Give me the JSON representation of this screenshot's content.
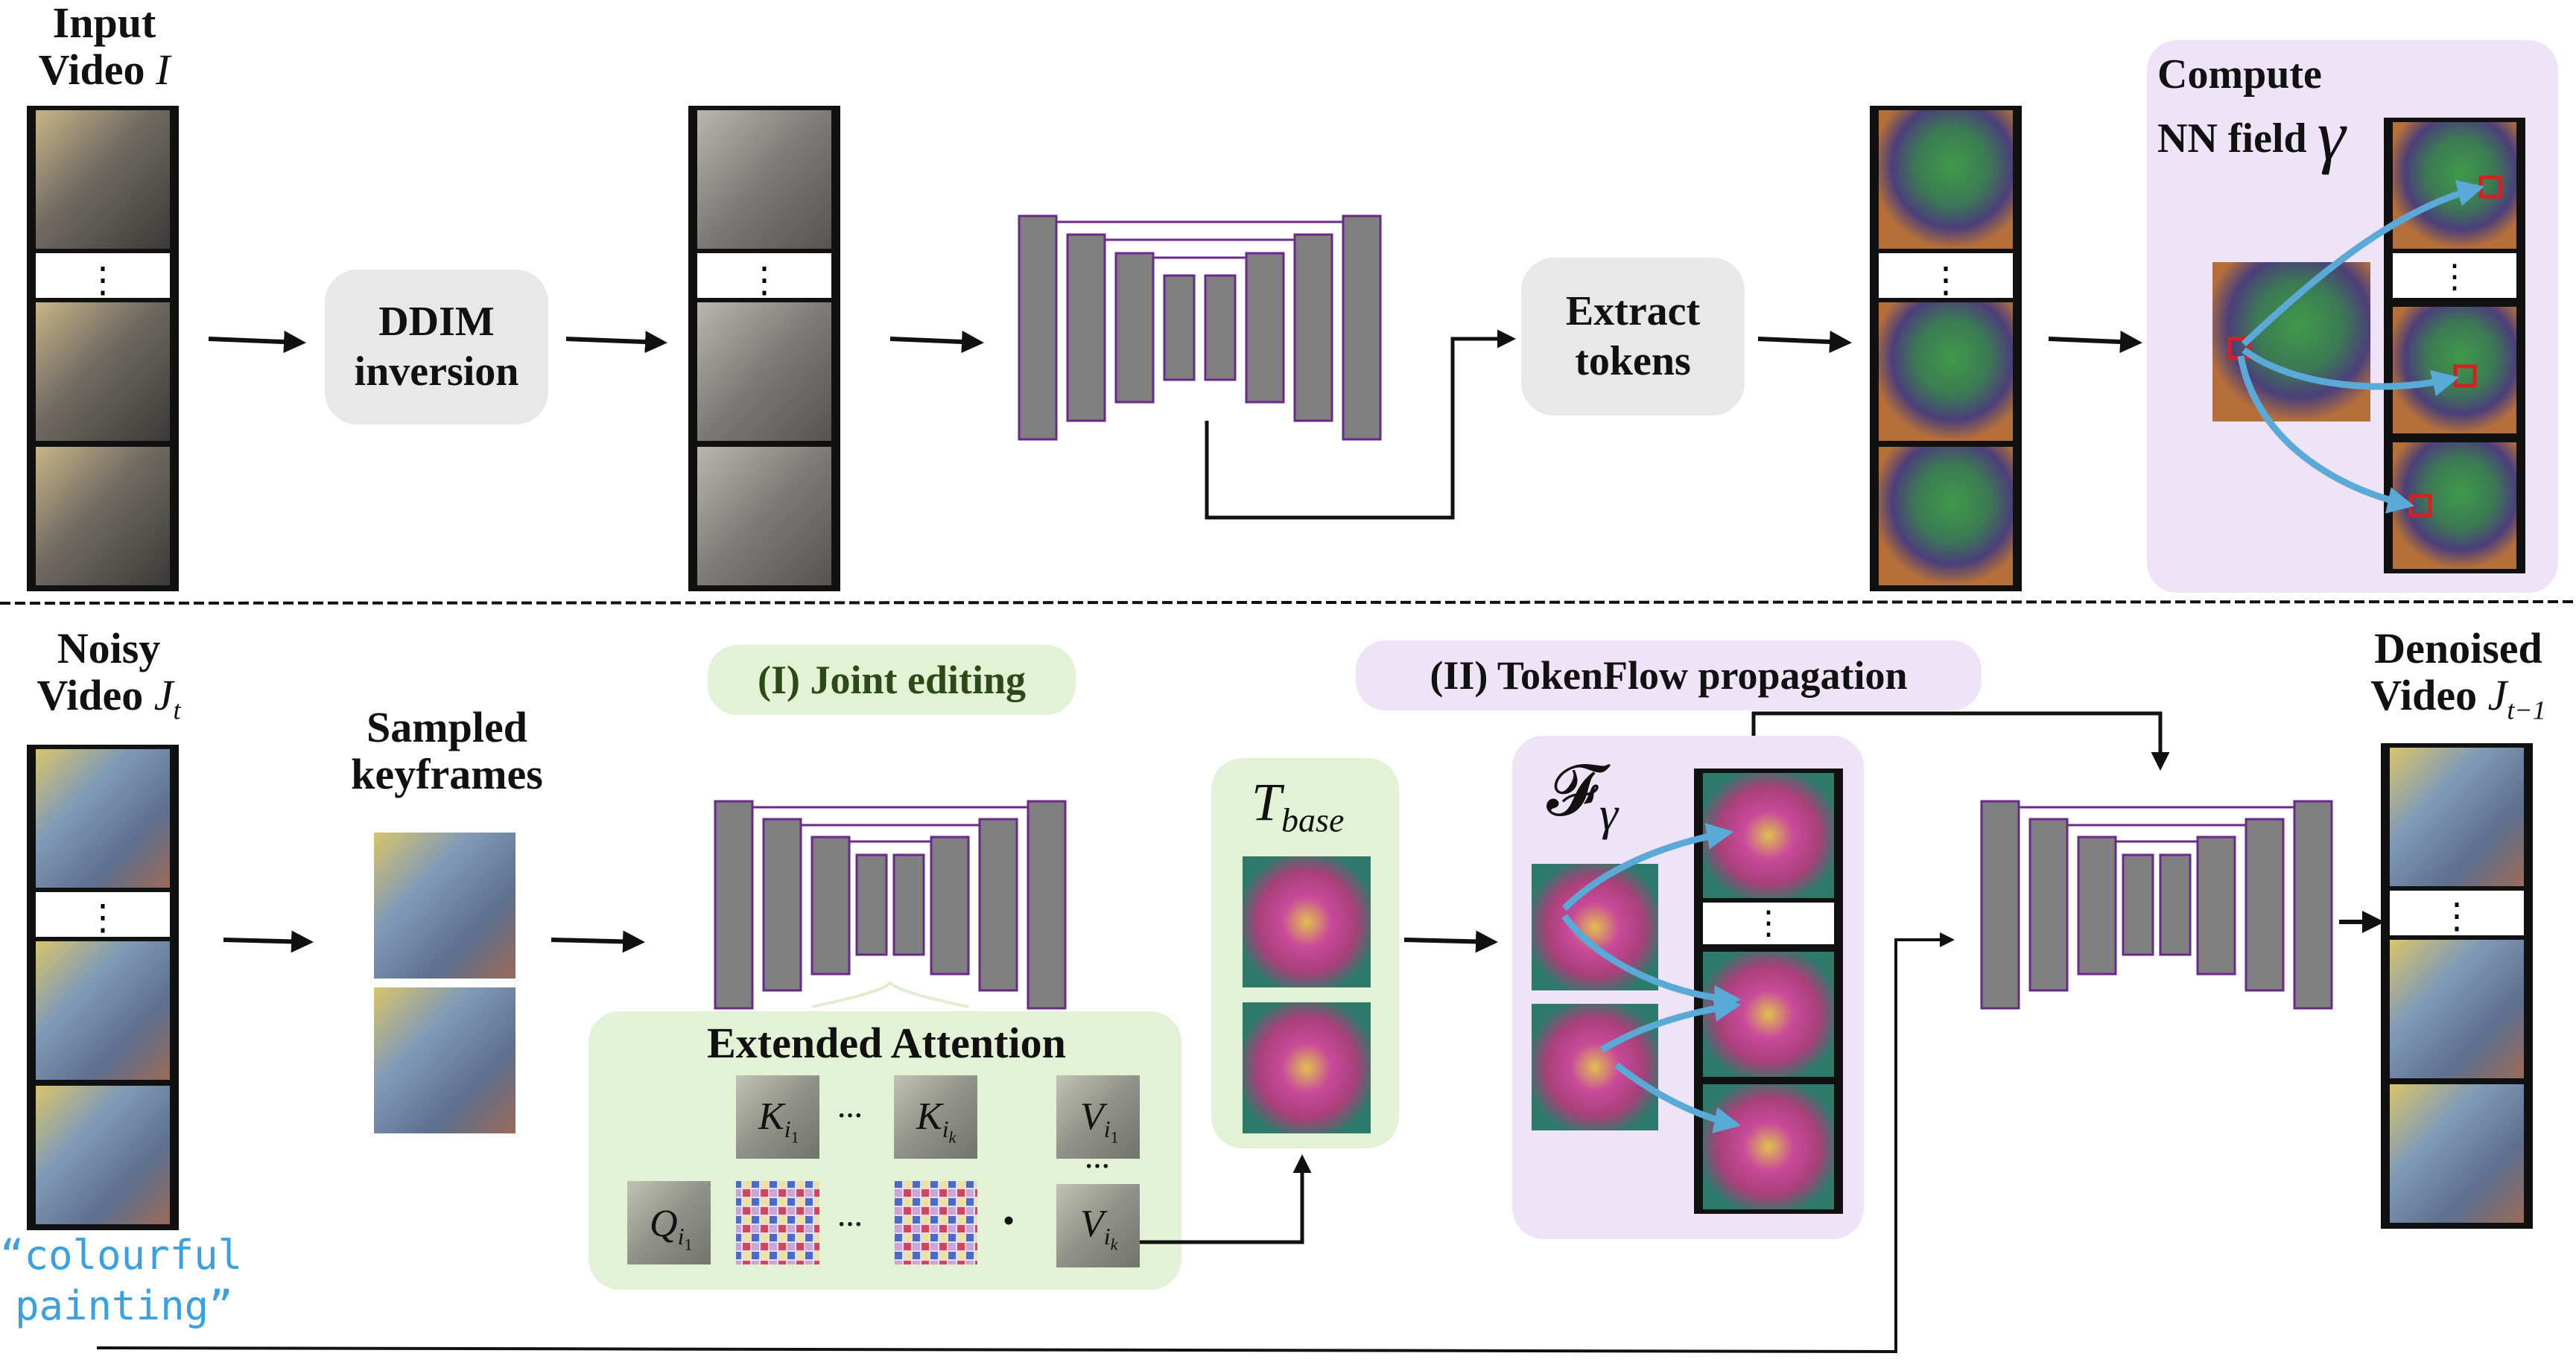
{
  "top_row": {
    "input_video": {
      "line1": "Input",
      "line2": "Video",
      "symbol": "I"
    },
    "ddim_inversion": {
      "line1": "DDIM",
      "line2": "inversion"
    },
    "extract_tokens": {
      "line1": "Extract",
      "line2": "tokens"
    },
    "compute_nn_field": {
      "line1": "Compute",
      "line2": "NN field",
      "symbol": "γ"
    }
  },
  "bottom_row": {
    "noisy_video": {
      "line1": "Noisy",
      "line2": "Video",
      "symbol": "J",
      "subscript": "t"
    },
    "sampled_keyframes": {
      "line1": "Sampled",
      "line2": "keyframes"
    },
    "joint_editing": "(I) Joint editing",
    "extended_attention": {
      "title": "Extended Attention",
      "k_first": "K",
      "k_first_sub": "i",
      "k_first_subsub": "1",
      "k_last": "K",
      "k_last_sub": "i",
      "k_last_subsub": "k",
      "v_first": "V",
      "v_first_sub": "i",
      "v_first_subsub": "1",
      "v_last": "V",
      "v_last_sub": "i",
      "v_last_subsub": "k",
      "q": "Q",
      "q_sub": "i",
      "q_subsub": "1",
      "ellipsis": "···",
      "dot": "•"
    },
    "t_base": {
      "symbol": "T",
      "subscript": "base"
    },
    "tokenflow_propagation": "(II) TokenFlow propagation",
    "f_gamma": {
      "symbol": "𝓕",
      "subscript": "γ"
    },
    "denoised_video": {
      "line1": "Denoised",
      "line2": "Video",
      "symbol": "J",
      "subscript": "t−1"
    },
    "prompt": {
      "line1": "“colourful",
      "line2": "painting”"
    }
  },
  "colors": {
    "unet_fill": "#808080",
    "unet_stroke": "#6a2a8a",
    "pill_gray": "#e8e8e8",
    "green_panel": "#e3f2d4",
    "purple_panel": "#efe3f7",
    "flow_arrow": "#5aaad8",
    "nn_marker": "#d42020",
    "prompt_text": "#3aa0e0"
  }
}
